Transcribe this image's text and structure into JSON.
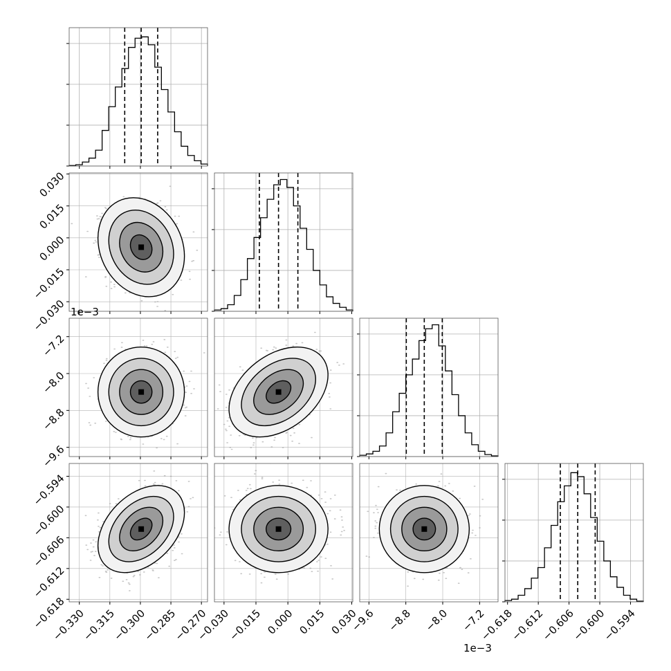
{
  "chart_data": {
    "type": "corner",
    "n_params": 4,
    "params": [
      {
        "range": [
          -0.335,
          -0.267
        ],
        "ticks": [
          -0.33,
          -0.315,
          -0.3,
          -0.285,
          -0.27
        ],
        "tick_labels": [
          "−0.330",
          "−0.315",
          "−0.300",
          "−0.285",
          "−0.270"
        ],
        "offset_text": "",
        "quantiles": [
          -0.3077,
          -0.2996,
          -0.2915
        ]
      },
      {
        "range": [
          -0.0345,
          0.0305
        ],
        "ticks": [
          -0.03,
          -0.015,
          0.0,
          0.015,
          0.03
        ],
        "tick_labels": [
          "−0.030",
          "−0.015",
          "0.000",
          "0.015",
          "0.030"
        ],
        "offset_text": "",
        "quantiles": [
          -0.0134,
          -0.0044,
          0.0047
        ]
      },
      {
        "range": [
          -9.8,
          -6.8
        ],
        "ticks": [
          -9.6,
          -8.8,
          -8.0,
          -7.2
        ],
        "tick_labels": [
          "−9.6",
          "−8.8",
          "−8.0",
          "−7.2"
        ],
        "offset_text": "1e−3",
        "quantiles": [
          -8.79,
          -8.4,
          -8.01
        ]
      },
      {
        "range": [
          -0.6185,
          -0.5915
        ],
        "ticks": [
          -0.618,
          -0.612,
          -0.606,
          -0.6,
          -0.594
        ],
        "tick_labels": [
          "−0.618",
          "−0.612",
          "−0.606",
          "−0.600",
          "−0.594"
        ],
        "offset_text": "",
        "quantiles": [
          -0.6077,
          -0.6043,
          -0.6009
        ]
      }
    ],
    "histograms": [
      [
        0.004,
        0.01,
        0.03,
        0.06,
        0.12,
        0.27,
        0.45,
        0.6,
        0.74,
        0.9,
        0.97,
        0.98,
        0.92,
        0.75,
        0.58,
        0.41,
        0.26,
        0.15,
        0.08,
        0.04,
        0.015
      ],
      [
        0.01,
        0.02,
        0.05,
        0.12,
        0.24,
        0.4,
        0.56,
        0.71,
        0.85,
        0.96,
        1.0,
        0.94,
        0.8,
        0.63,
        0.47,
        0.31,
        0.2,
        0.11,
        0.06,
        0.03,
        0.01
      ],
      [
        0.01,
        0.02,
        0.04,
        0.08,
        0.18,
        0.34,
        0.48,
        0.62,
        0.74,
        0.88,
        0.97,
        1.0,
        0.84,
        0.65,
        0.47,
        0.31,
        0.18,
        0.09,
        0.04,
        0.015,
        0.005
      ],
      [
        0.01,
        0.02,
        0.05,
        0.1,
        0.18,
        0.26,
        0.41,
        0.58,
        0.76,
        0.88,
        0.98,
        0.95,
        0.82,
        0.64,
        0.46,
        0.31,
        0.19,
        0.11,
        0.05,
        0.02,
        0.005
      ]
    ],
    "hist_ylim": [
      0,
      1.05
    ],
    "hist_yticks": [
      0.0,
      0.31,
      0.62,
      0.93
    ],
    "pairs": [
      {
        "i": 1,
        "j": 0,
        "mean": [
          -0.2996,
          -0.0044
        ],
        "std": [
          0.0085,
          0.0093
        ],
        "rho": -0.18
      },
      {
        "i": 2,
        "j": 0,
        "mean": [
          -0.2996,
          -8.4
        ],
        "std": [
          0.0085,
          0.39
        ],
        "rho": 0.0
      },
      {
        "i": 2,
        "j": 1,
        "mean": [
          -0.0044,
          -8.4
        ],
        "std": [
          0.0093,
          0.39
        ],
        "rho": 0.38
      },
      {
        "i": 3,
        "j": 0,
        "mean": [
          -0.2996,
          -0.6043
        ],
        "std": [
          0.0085,
          0.0034
        ],
        "rho": 0.38
      },
      {
        "i": 3,
        "j": 1,
        "mean": [
          -0.0044,
          -0.6043
        ],
        "std": [
          0.0093,
          0.0034
        ],
        "rho": 0.0
      },
      {
        "i": 3,
        "j": 2,
        "mean": [
          -8.4,
          -0.6043
        ],
        "std": [
          0.39,
          0.0034
        ],
        "rho": 0.0
      }
    ],
    "contour_levels_sigma": [
      0.5,
      1.0,
      1.5,
      2.0
    ],
    "grid": true,
    "colors": {
      "line": "#000000",
      "grid": "#b0b0b0",
      "points": "#999999",
      "frame": "#555555"
    }
  }
}
